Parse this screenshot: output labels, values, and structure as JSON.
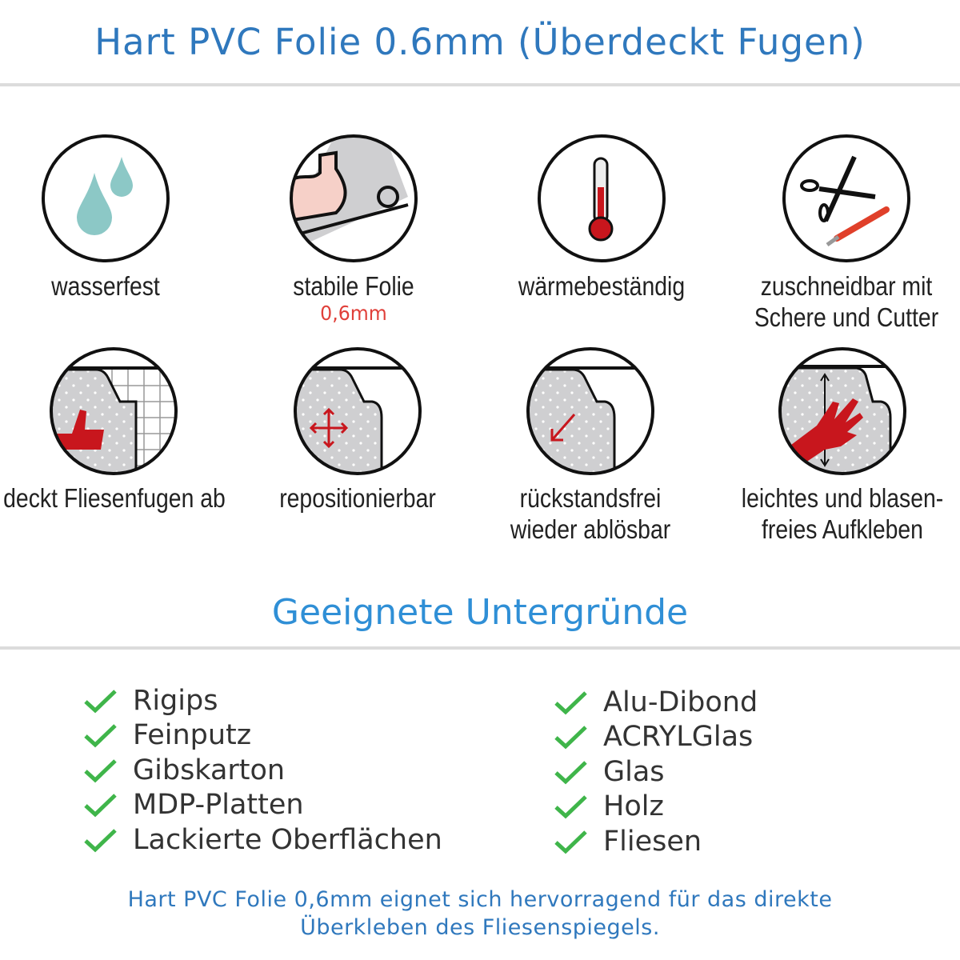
{
  "title": "Hart PVC Folie 0.6mm (Überdeckt Fugen)",
  "features": [
    {
      "icon": "water-drops-icon",
      "label": "wasserfest"
    },
    {
      "icon": "strong-arm-foil-icon",
      "label": "stabile Folie",
      "sub": "0,6mm"
    },
    {
      "icon": "thermometer-icon",
      "label": "wärmebeständig"
    },
    {
      "icon": "scissors-cutter-icon",
      "label": "zuschneidbar mit",
      "label2": "Schere und Cutter"
    },
    {
      "icon": "thumbs-up-tiles-icon",
      "label": "deckt Fliesenfugen ab"
    },
    {
      "icon": "move-arrows-icon",
      "label": "repositionierbar"
    },
    {
      "icon": "peel-arrow-icon",
      "label": "rückstandsfrei",
      "label2": "wieder ablösbar"
    },
    {
      "icon": "hand-smooth-icon",
      "label": "leichtes und blasen-",
      "label2": "freies Aufkleben"
    }
  ],
  "surfaces_title": "Geeignete Untergründe",
  "surfaces_left": [
    "Rigips",
    "Feinputz",
    "Gibskarton",
    "MDP-Platten",
    "Lackierte Oberflächen"
  ],
  "surfaces_right": [
    "Alu-Dibond",
    "ACRYLGlas",
    "Glas",
    "Holz",
    "Fliesen"
  ],
  "footer": {
    "line1": "Hart PVC Folie 0,6mm eignet sich hervorragend für das direkte",
    "line2": "Überkleben des Fliesenspiegels."
  },
  "colors": {
    "title": "#2f78bd",
    "subtitle": "#2f8fd6",
    "check": "#3fb54a",
    "accent_red": "#c8161d"
  }
}
